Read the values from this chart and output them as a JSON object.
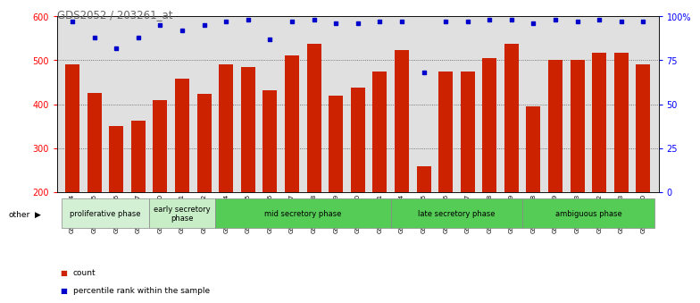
{
  "title": "GDS2052 / 203261_at",
  "samples": [
    "GSM109814",
    "GSM109815",
    "GSM109816",
    "GSM109817",
    "GSM109820",
    "GSM109821",
    "GSM109822",
    "GSM109824",
    "GSM109825",
    "GSM109826",
    "GSM109827",
    "GSM109828",
    "GSM109829",
    "GSM109830",
    "GSM109831",
    "GSM109834",
    "GSM109835",
    "GSM109836",
    "GSM109837",
    "GSM109838",
    "GSM109839",
    "GSM109818",
    "GSM109819",
    "GSM109823",
    "GSM109832",
    "GSM109833",
    "GSM109840"
  ],
  "counts": [
    490,
    425,
    350,
    362,
    410,
    458,
    424,
    490,
    485,
    432,
    512,
    537,
    420,
    438,
    475,
    524,
    258,
    475,
    475,
    505,
    537,
    395,
    500,
    500,
    518,
    518,
    490
  ],
  "percentile_ranks": [
    97,
    88,
    82,
    88,
    95,
    92,
    95,
    97,
    98,
    87,
    97,
    98,
    96,
    96,
    97,
    97,
    68,
    97,
    97,
    98,
    98,
    96,
    98,
    97,
    98,
    97,
    97
  ],
  "phase_starts": [
    0,
    4,
    7,
    15,
    21
  ],
  "phase_ends": [
    4,
    7,
    15,
    21,
    27
  ],
  "phase_labels": [
    "proliferative phase",
    "early secretory\nphase",
    "mid secretory phase",
    "late secretory phase",
    "ambiguous phase"
  ],
  "phase_colors": [
    "#d4f0d4",
    "#c8eec8",
    "#55cc55",
    "#55cc55",
    "#55cc55"
  ],
  "ylim": [
    200,
    600
  ],
  "yticks": [
    200,
    300,
    400,
    500,
    600
  ],
  "right_yticks": [
    0,
    25,
    50,
    75,
    100
  ],
  "bar_color": "#cc2200",
  "dot_color": "#0000cc",
  "bg_color": "#e0e0e0",
  "grid_color": "#555555",
  "title_color": "#666666"
}
